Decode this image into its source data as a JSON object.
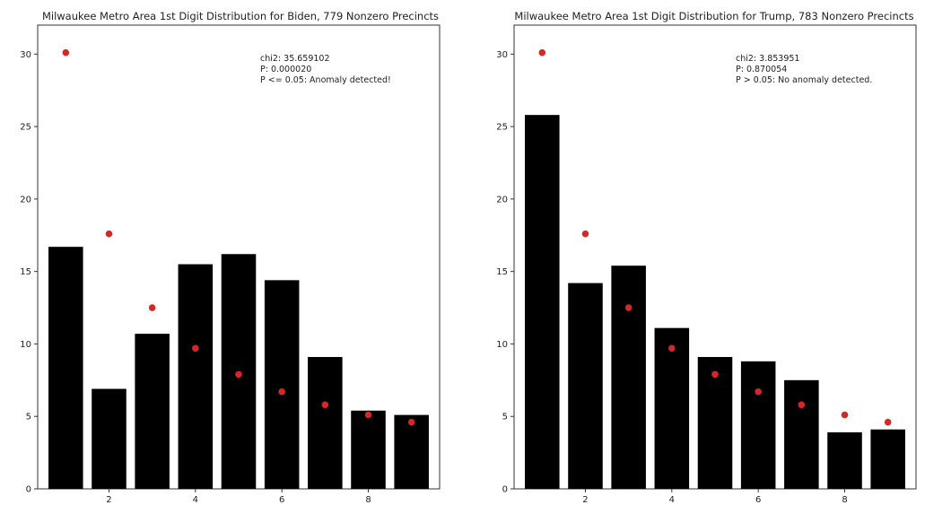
{
  "chart_data": [
    {
      "type": "bar",
      "title": "Milwaukee Metro Area 1st Digit Distribution for Biden, 779 Nonzero Precincts",
      "xlabel": "",
      "ylabel": "",
      "x": [
        1,
        2,
        3,
        4,
        5,
        6,
        7,
        8,
        9
      ],
      "series": [
        {
          "values": [
            16.7,
            6.9,
            10.7,
            15.5,
            16.2,
            14.4,
            9.1,
            5.4,
            5.1
          ]
        },
        {
          "values": [
            30.1,
            17.6,
            12.5,
            9.7,
            7.9,
            6.7,
            5.8,
            5.1,
            4.6
          ]
        }
      ],
      "ylim": [
        0,
        32
      ],
      "xticks": [
        "2",
        "4",
        "6",
        "8"
      ],
      "yticks": [
        "0",
        "5",
        "10",
        "15",
        "20",
        "25",
        "30"
      ],
      "annotation": [
        "chi2: 35.659102",
        "P: 0.000020",
        "P <= 0.05: Anomaly detected!"
      ],
      "grid": false,
      "colors": {
        "bars": "#000000",
        "points": "#d62728"
      }
    },
    {
      "type": "bar",
      "title": "Milwaukee Metro Area 1st Digit Distribution for Trump, 783 Nonzero Precincts",
      "xlabel": "",
      "ylabel": "",
      "x": [
        1,
        2,
        3,
        4,
        5,
        6,
        7,
        8,
        9
      ],
      "series": [
        {
          "values": [
            25.8,
            14.2,
            15.4,
            11.1,
            9.1,
            8.8,
            7.5,
            3.9,
            4.1
          ]
        },
        {
          "values": [
            30.1,
            17.6,
            12.5,
            9.7,
            7.9,
            6.7,
            5.8,
            5.1,
            4.6
          ]
        }
      ],
      "ylim": [
        0,
        32
      ],
      "xticks": [
        "2",
        "4",
        "6",
        "8"
      ],
      "yticks": [
        "0",
        "5",
        "10",
        "15",
        "20",
        "25",
        "30"
      ],
      "annotation": [
        "chi2: 3.853951",
        "P: 0.870054",
        "P > 0.05: No anomaly detected."
      ],
      "grid": false,
      "colors": {
        "bars": "#000000",
        "points": "#d62728"
      }
    }
  ]
}
